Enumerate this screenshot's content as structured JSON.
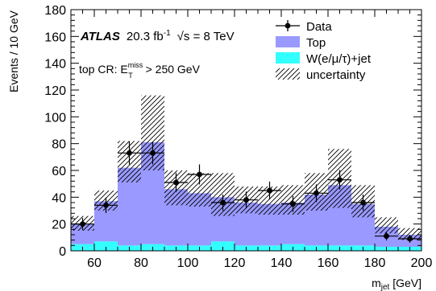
{
  "chart_data": {
    "type": "bar",
    "stacked": true,
    "ylabel": "Events / 10 GeV",
    "xlabel_main": "m",
    "xlabel_sub": "jet",
    "xlabel_unit": " [GeV]",
    "xlim": [
      50,
      200
    ],
    "ylim": [
      0,
      180
    ],
    "xticks": [
      60,
      80,
      100,
      120,
      140,
      160,
      180,
      200
    ],
    "yticks": [
      0,
      20,
      40,
      60,
      80,
      100,
      120,
      140,
      160,
      180
    ],
    "bin_edges": [
      50,
      60,
      70,
      80,
      90,
      100,
      110,
      120,
      130,
      140,
      150,
      160,
      170,
      180,
      190,
      200
    ],
    "series": [
      {
        "name": "W(e/μ/τ)+jet",
        "color": "#33ffff",
        "values": [
          5,
          7,
          4,
          5,
          4,
          4,
          7,
          4,
          4,
          5,
          4,
          4,
          4,
          3,
          3
        ]
      },
      {
        "name": "Top",
        "color": "#9999ff",
        "values": [
          15,
          30,
          58,
          76,
          42,
          39,
          33,
          32,
          31,
          31,
          38,
          45,
          31,
          15,
          9
        ]
      }
    ],
    "totals": [
      20,
      37,
      62,
      81,
      46,
      43,
      40,
      36,
      35,
      36,
      42,
      49,
      35,
      18,
      12
    ],
    "uncertainty": {
      "name": "uncertainty",
      "lower": [
        15,
        30,
        51,
        60,
        34,
        33,
        26,
        28,
        27,
        27,
        30,
        32,
        25,
        13,
        8
      ],
      "upper": [
        26,
        45,
        82,
        116,
        60,
        58,
        58,
        48,
        48,
        49,
        58,
        76,
        49,
        25,
        17
      ]
    },
    "data_points": {
      "name": "Data",
      "x": [
        55,
        65,
        75,
        85,
        95,
        105,
        115,
        125,
        135,
        145,
        155,
        165,
        175,
        185,
        195
      ],
      "y": [
        20,
        34,
        73,
        73,
        51,
        57,
        36,
        38,
        45,
        35,
        43,
        53,
        36,
        11,
        9
      ],
      "yerr": [
        4.5,
        5.8,
        8.5,
        8.5,
        7.1,
        7.5,
        6.0,
        6.2,
        6.7,
        5.9,
        6.6,
        7.3,
        6.0,
        3.3,
        3.0
      ]
    },
    "legend_position": "top-right",
    "annotation": {
      "experiment": "ATLAS",
      "lumi_value": "20.3 fb",
      "lumi_exp": "-1",
      "sqrt_symbol": "√",
      "energy": "s = 8 TeV",
      "region_prefix": "top CR: E",
      "region_sup": "miss",
      "region_sub": "T",
      "region_suffix": " > 250 GeV"
    },
    "legend": [
      {
        "name": "Data",
        "marker": "point"
      },
      {
        "name": "Top",
        "marker": "fill",
        "color": "#9999ff"
      },
      {
        "name": "W(e/μ/τ)+jet",
        "marker": "fill",
        "color": "#33ffff"
      },
      {
        "name": "uncertainty",
        "marker": "hatch"
      }
    ]
  }
}
